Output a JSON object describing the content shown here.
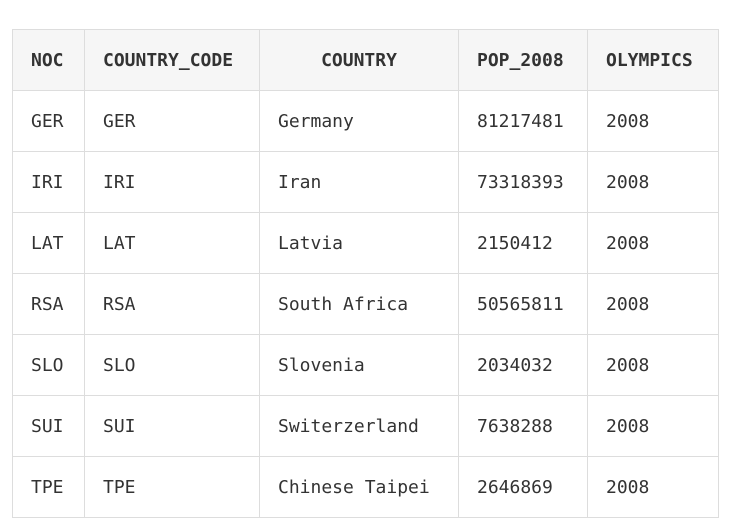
{
  "table": {
    "headers": [
      "NOC",
      "COUNTRY_CODE",
      "COUNTRY",
      "POP_2008",
      "OLYMPICS"
    ],
    "rows": [
      [
        "GER",
        "GER",
        "Germany",
        "81217481",
        "2008"
      ],
      [
        "IRI",
        "IRI",
        "Iran",
        "73318393",
        "2008"
      ],
      [
        "LAT",
        "LAT",
        "Latvia",
        "2150412",
        "2008"
      ],
      [
        "RSA",
        "RSA",
        "South Africa",
        "50565811",
        "2008"
      ],
      [
        "SLO",
        "SLO",
        "Slovenia",
        "2034032",
        "2008"
      ],
      [
        "SUI",
        "SUI",
        "Switerzerland",
        "7638288",
        "2008"
      ],
      [
        "TPE",
        "TPE",
        "Chinese Taipei",
        "2646869",
        "2008"
      ]
    ]
  }
}
